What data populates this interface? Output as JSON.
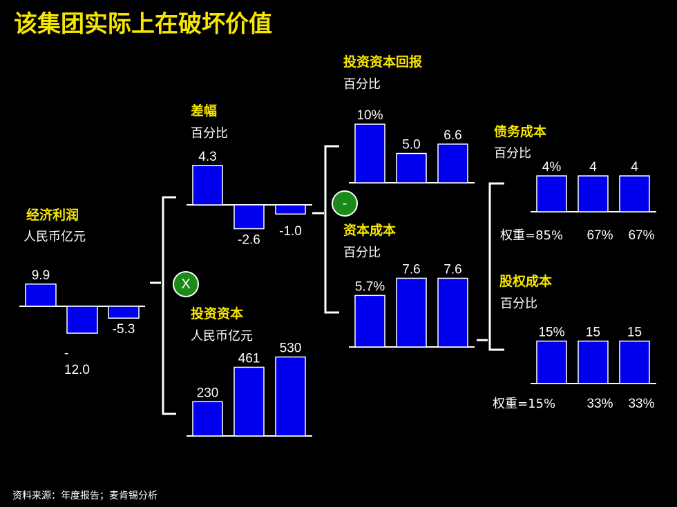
{
  "title": "该集团实际上在破坏价值",
  "source": "资料来源：年度报告；麦肯锡分析",
  "colors": {
    "bar": "#0000ee",
    "heading": "#f7e600",
    "operator": "#1a8a1a"
  },
  "operators": {
    "multiply": "X",
    "minus": "-"
  },
  "panels": {
    "economic_profit": {
      "title": "经济利润",
      "unit": "人民币亿元"
    },
    "spread": {
      "title": "差幅",
      "unit": "百分比"
    },
    "invested_capital": {
      "title": "投资资本",
      "unit": "人民币亿元"
    },
    "roic": {
      "title": "投资资本回报",
      "unit": "百分比"
    },
    "cost_of_capital": {
      "title": "资本成本",
      "unit": "百分比"
    },
    "cost_of_debt": {
      "title": "债务成本",
      "unit": "百分比",
      "weight_label": "权重=85%"
    },
    "cost_of_equity": {
      "title": "股权成本",
      "unit": "百分比",
      "weight_label": "权重=15%"
    }
  },
  "chart_data": [
    {
      "id": "economic_profit",
      "type": "bar",
      "values": [
        9.9,
        -12.0,
        -5.3
      ],
      "labels": [
        "9.9",
        "-\n12.0",
        "-5.3"
      ]
    },
    {
      "id": "spread",
      "type": "bar",
      "values": [
        4.3,
        -2.6,
        -1.0
      ],
      "labels": [
        "4.3",
        "-2.6",
        "-1.0"
      ]
    },
    {
      "id": "invested_capital",
      "type": "bar",
      "values": [
        230,
        461,
        530
      ],
      "labels": [
        "230",
        "461",
        "530"
      ]
    },
    {
      "id": "roic",
      "type": "bar",
      "values": [
        10,
        5.0,
        6.6
      ],
      "labels": [
        "10%",
        "5.0",
        "6.6"
      ]
    },
    {
      "id": "cost_of_capital",
      "type": "bar",
      "values": [
        5.7,
        7.6,
        7.6
      ],
      "labels": [
        "5.7%",
        "7.6",
        "7.6"
      ]
    },
    {
      "id": "cost_of_debt",
      "type": "bar",
      "values": [
        4,
        4,
        4
      ],
      "labels": [
        "4%",
        "4",
        "4"
      ],
      "weights": [
        "67%",
        "67%"
      ]
    },
    {
      "id": "cost_of_equity",
      "type": "bar",
      "values": [
        15,
        15,
        15
      ],
      "labels": [
        "15%",
        "15",
        "15"
      ],
      "weights": [
        "33%",
        "33%"
      ]
    }
  ]
}
